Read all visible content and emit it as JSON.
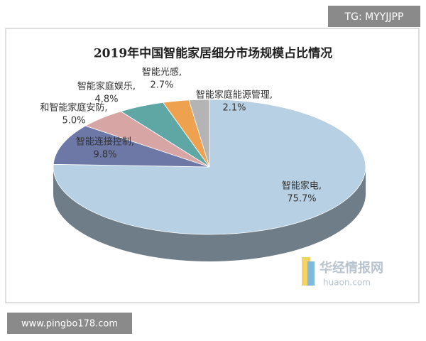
{
  "chart_data": {
    "type": "pie",
    "title": "2019年中国智能家居细分市场规模占比情况",
    "categories": [
      "智能家电,",
      "智能连接控制,",
      "和智能家庭安防,",
      "智能家庭娱乐,",
      "智能光感,",
      "智能家庭能源管理,"
    ],
    "values": [
      75.7,
      9.8,
      5.0,
      4.8,
      2.7,
      2.1
    ],
    "value_labels": [
      "75.7%",
      "9.8%",
      "5.0%",
      "4.8%",
      "2.7%",
      "2.1%"
    ],
    "colors": [
      "#b7d0e3",
      "#6e78a6",
      "#d7a6a4",
      "#5ea7a4",
      "#eea24f",
      "#b4b4b4"
    ]
  },
  "watermarks": {
    "top": "TG: MYYJJPP",
    "bottom": "www.pingbo178.com",
    "brand": "华经情报网",
    "brand_url": "huaon.com"
  }
}
